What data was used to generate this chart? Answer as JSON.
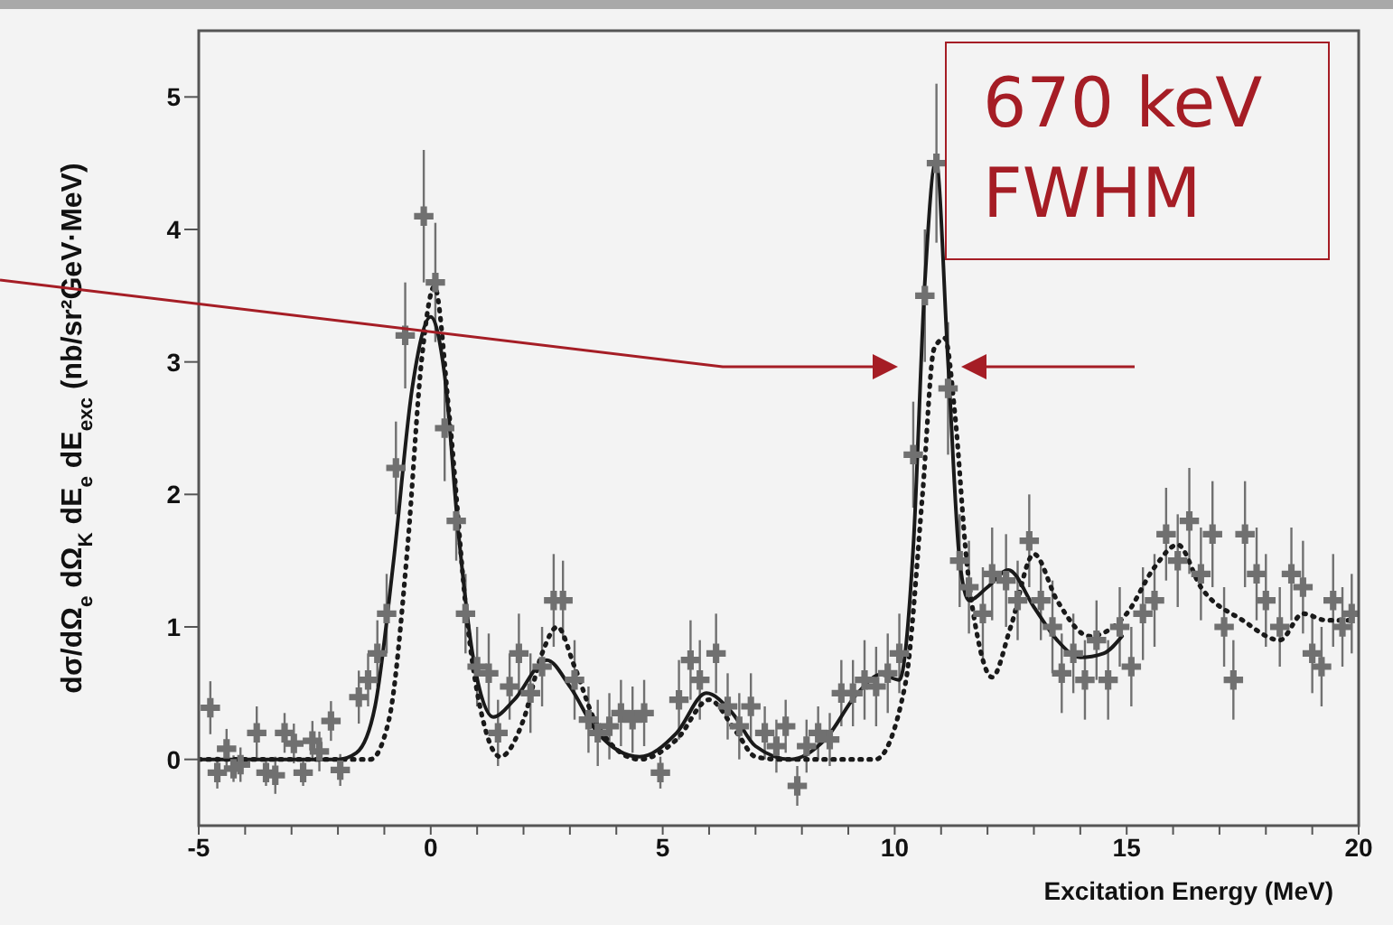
{
  "chart_data": {
    "type": "scatter",
    "xlabel": "Excitation Energy (MeV)",
    "ylabel": "dσ/dΩ$_{e}$ dΩ$_{K}$ dE$_{e}$ dE$_{exc}$ (nb/sr²GeV·MeV)",
    "annotations": [
      "670 keV FWHM"
    ],
    "xlim": [
      -5,
      20
    ],
    "xticks": [
      -5,
      {
        "value": -4,
        "label": null
      },
      {
        "value": -3,
        "label": null
      },
      {
        "value": -2,
        "label": null
      },
      {
        "value": -1,
        "label": null
      },
      0,
      {
        "value": 1,
        "label": null
      },
      {
        "value": 2,
        "label": null
      },
      {
        "value": 3,
        "label": null
      },
      {
        "value": 4,
        "label": null
      },
      5,
      {
        "value": 6,
        "label": null
      },
      {
        "value": 7,
        "label": null
      },
      {
        "value": 8,
        "label": null
      },
      {
        "value": 9,
        "label": null
      },
      10,
      {
        "value": 11,
        "label": null
      },
      {
        "value": 12,
        "label": null
      },
      {
        "value": 13,
        "label": null
      },
      {
        "value": 14,
        "label": null
      },
      15,
      {
        "value": 16,
        "label": null
      },
      {
        "value": 17,
        "label": null
      },
      {
        "value": 18,
        "label": null
      },
      {
        "value": 19,
        "label": null
      },
      20
    ],
    "ylim": [
      -0.5,
      5.5
    ],
    "yticks": [
      0,
      1,
      2,
      3,
      4,
      5
    ],
    "series": [
      {
        "color": "#707070",
        "marker": "cross",
        "x": [
          -4.75,
          -4.6,
          -4.4,
          -4.25,
          -4.1,
          -3.75,
          -3.55,
          -3.35,
          -3.15,
          -2.95,
          -2.75,
          -2.55,
          -2.4,
          -2.15,
          -1.95,
          -1.55,
          -1.35,
          -1.15,
          -0.95,
          -0.75,
          -0.55,
          -0.15,
          0.1,
          0.3,
          0.55,
          0.75,
          1.0,
          1.25,
          1.45,
          1.7,
          1.9,
          2.15,
          2.4,
          2.65,
          2.85,
          3.1,
          3.4,
          3.6,
          3.85,
          4.1,
          4.35,
          4.6,
          4.95,
          5.35,
          5.6,
          5.8,
          6.15,
          6.4,
          6.65,
          6.9,
          7.2,
          7.45,
          7.65,
          7.9,
          8.1,
          8.35,
          8.6,
          8.85,
          9.1,
          9.35,
          9.6,
          9.85,
          10.1,
          10.4,
          10.65,
          10.9,
          11.15,
          11.4,
          11.6,
          11.9,
          12.1,
          12.4,
          12.65,
          12.9,
          13.15,
          13.4,
          13.6,
          13.85,
          14.1,
          14.35,
          14.6,
          14.85,
          15.1,
          15.35,
          15.6,
          15.85,
          16.1,
          16.35,
          16.6,
          16.85,
          17.1,
          17.3,
          17.55,
          17.8,
          18.0,
          18.3,
          18.55,
          18.8,
          19.0,
          19.2,
          19.45,
          19.65,
          19.85
        ],
        "values": [
          0.39,
          -0.1,
          0.08,
          -0.07,
          -0.04,
          0.2,
          -0.1,
          -0.12,
          0.2,
          0.12,
          -0.1,
          0.14,
          0.06,
          0.29,
          -0.08,
          0.47,
          0.6,
          0.8,
          1.1,
          2.2,
          3.2,
          4.1,
          3.6,
          2.5,
          1.8,
          1.1,
          0.7,
          0.65,
          0.2,
          0.55,
          0.8,
          0.5,
          0.7,
          1.2,
          1.2,
          0.6,
          0.3,
          0.2,
          0.25,
          0.35,
          0.3,
          0.35,
          -0.1,
          0.45,
          0.75,
          0.6,
          0.8,
          0.4,
          0.25,
          0.4,
          0.2,
          0.1,
          0.25,
          -0.2,
          0.1,
          0.2,
          0.15,
          0.5,
          0.5,
          0.6,
          0.55,
          0.65,
          0.8,
          2.3,
          3.5,
          4.5,
          2.8,
          1.5,
          1.3,
          1.1,
          1.4,
          1.35,
          1.2,
          1.65,
          1.2,
          1.0,
          0.65,
          0.8,
          0.6,
          0.9,
          0.6,
          1.0,
          0.7,
          1.1,
          1.2,
          1.7,
          1.5,
          1.8,
          1.4,
          1.7,
          1.0,
          0.6,
          1.7,
          1.4,
          1.2,
          1.0,
          1.4,
          1.3,
          0.8,
          0.7,
          1.2,
          1.0,
          1.1
        ],
        "errors": [
          0.2,
          0.12,
          0.15,
          0.1,
          0.13,
          0.2,
          0.1,
          0.14,
          0.15,
          0.15,
          0.1,
          0.15,
          0.15,
          0.15,
          0.12,
          0.2,
          0.2,
          0.25,
          0.3,
          0.35,
          0.4,
          0.5,
          0.45,
          0.4,
          0.3,
          0.3,
          0.3,
          0.3,
          0.25,
          0.25,
          0.3,
          0.3,
          0.3,
          0.35,
          0.3,
          0.3,
          0.25,
          0.25,
          0.25,
          0.25,
          0.25,
          0.25,
          0.12,
          0.3,
          0.3,
          0.3,
          0.3,
          0.25,
          0.25,
          0.25,
          0.2,
          0.2,
          0.2,
          0.15,
          0.2,
          0.2,
          0.2,
          0.25,
          0.25,
          0.3,
          0.3,
          0.3,
          0.3,
          0.4,
          0.5,
          0.6,
          0.5,
          0.35,
          0.35,
          0.35,
          0.35,
          0.35,
          0.3,
          0.35,
          0.3,
          0.35,
          0.3,
          0.3,
          0.3,
          0.3,
          0.3,
          0.3,
          0.3,
          0.35,
          0.35,
          0.35,
          0.35,
          0.4,
          0.35,
          0.4,
          0.3,
          0.3,
          0.4,
          0.35,
          0.35,
          0.3,
          0.35,
          0.35,
          0.3,
          0.3,
          0.35,
          0.3,
          0.3
        ]
      },
      {
        "type": "line",
        "color": "#1a1a1a",
        "line_style": "solid",
        "marker": "none",
        "x": [
          -5,
          -2,
          -1.6,
          -1.2,
          -0.8,
          -0.4,
          0,
          0.3,
          0.6,
          0.9,
          1.35,
          1.8,
          2.5,
          3.0,
          3.6,
          4.5,
          5.3,
          5.94,
          6.5,
          7.0,
          7.76,
          8.5,
          9.2,
          9.7,
          10.1,
          10.4,
          10.65,
          10.89,
          11.15,
          11.4,
          11.6,
          12.0,
          12.45,
          13.0,
          13.5,
          14.0,
          14.5,
          14.9
        ],
        "values": [
          0,
          0,
          0.05,
          0.4,
          1.5,
          2.8,
          3.34,
          2.9,
          1.7,
          0.8,
          0.32,
          0.45,
          0.75,
          0.55,
          0.2,
          0.02,
          0.2,
          0.5,
          0.35,
          0.1,
          0.0,
          0.15,
          0.5,
          0.64,
          0.6,
          1.6,
          3.6,
          4.52,
          3.0,
          1.5,
          1.2,
          1.3,
          1.43,
          1.15,
          0.9,
          0.77,
          0.8,
          0.93
        ]
      },
      {
        "type": "line",
        "color": "#1a1a1a",
        "line_style": "dotted",
        "marker": "none",
        "x": [
          -5,
          -1.3,
          -0.9,
          -0.5,
          -0.2,
          0.08,
          0.4,
          0.8,
          1.2,
          1.5,
          2.0,
          2.4,
          2.73,
          3.1,
          3.6,
          4.5,
          5.3,
          6.0,
          6.6,
          7.0,
          7.5,
          9.58,
          10.23,
          10.6,
          10.85,
          11.08,
          11.3,
          11.55,
          11.8,
          12.1,
          12.5,
          13.0,
          13.5,
          14.2,
          15.0,
          15.6,
          16.1,
          16.6,
          17.5,
          18.3,
          18.8,
          19.3,
          19.85
        ],
        "values": [
          0,
          0,
          0.3,
          1.6,
          3.0,
          3.57,
          2.6,
          1.0,
          0.2,
          0.02,
          0.3,
          0.8,
          1.0,
          0.7,
          0.25,
          0.0,
          0.15,
          0.45,
          0.2,
          0.02,
          0,
          0,
          0.57,
          2.0,
          3.1,
          3.18,
          2.6,
          1.5,
          0.9,
          0.62,
          1.0,
          1.55,
          1.2,
          0.93,
          1.1,
          1.45,
          1.62,
          1.3,
          1.05,
          0.9,
          1.1,
          1.05,
          1.05
        ]
      }
    ]
  }
}
